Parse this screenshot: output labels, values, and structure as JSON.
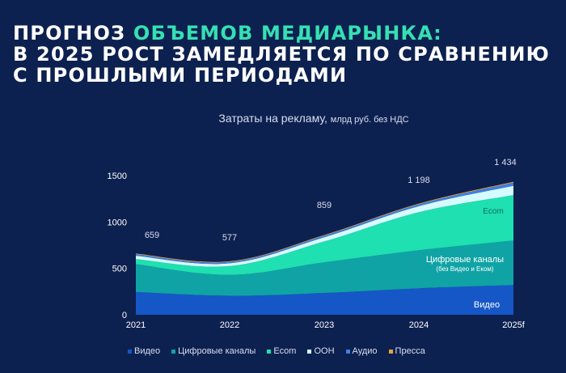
{
  "headline": {
    "line1_a": "ПРОГНОЗ ",
    "line1_b": "ОБЪЕМОВ МЕДИАРЫНКА:",
    "line2": "В 2025 РОСТ ЗАМЕДЛЯЕТСЯ ПО СРАВНЕНИЮ",
    "line3": "С ПРОШЛЫМИ ПЕРИОДАМИ"
  },
  "colors": {
    "background": "#0d2150",
    "accent": "#35e0b3",
    "video": "#1557c7",
    "digital": "#10a3a5",
    "ecom": "#1fe0b0",
    "ooh": "#d6fbff",
    "audio": "#3d7fe0",
    "press": "#e8a33d"
  },
  "chart_data": {
    "type": "area",
    "title": "Затраты на рекламу,",
    "title_small": "млрд руб. без НДС",
    "x": [
      "2021",
      "2022",
      "2023",
      "2024",
      "2025f"
    ],
    "yticks": [
      "0",
      "500",
      "1000",
      "1500"
    ],
    "ylim": [
      0,
      1560
    ],
    "series": [
      {
        "name": "Видео",
        "key": "video",
        "values": [
          245,
          205,
          235,
          285,
          320
        ]
      },
      {
        "name": "Цифровые каналы",
        "key": "digital",
        "values": [
          300,
          225,
          330,
          410,
          480
        ]
      },
      {
        "name": "Ecom",
        "key": "ecom",
        "values": [
          55,
          95,
          225,
          410,
          490
        ]
      },
      {
        "name": "OOH",
        "key": "ooh",
        "values": [
          35,
          30,
          45,
          65,
          100
        ]
      },
      {
        "name": "Аудио",
        "key": "audio",
        "values": [
          18,
          15,
          17,
          20,
          35
        ]
      },
      {
        "name": "Пресса",
        "key": "press",
        "values": [
          6,
          7,
          7,
          8,
          9
        ]
      }
    ],
    "totals": [
      "659",
      "577",
      "859",
      "1 198",
      "1 434"
    ],
    "area_labels": {
      "ecom": "Ecom",
      "digital": "Цифровые каналы",
      "digital_note": "(без Видео и Еком)",
      "video": "Видео"
    }
  }
}
